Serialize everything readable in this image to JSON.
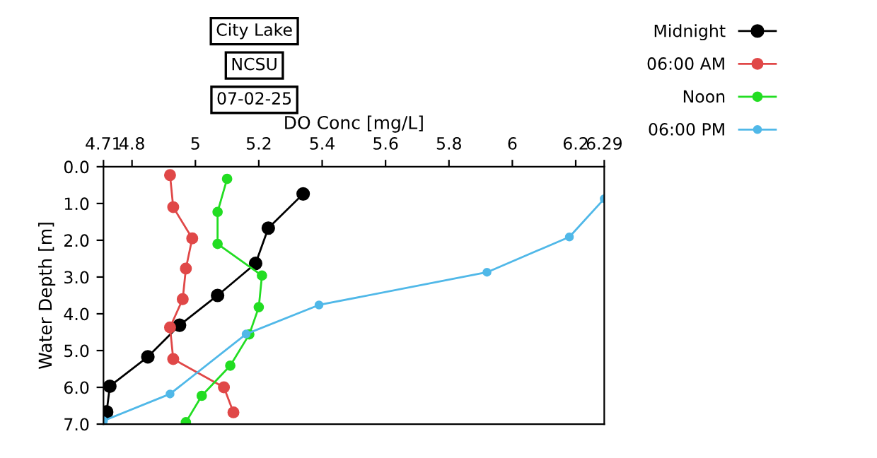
{
  "chart_data": {
    "type": "line",
    "title": "City Lake",
    "subtitle": "NCSU",
    "annotations": [
      "07-02-25"
    ],
    "xlabel": "DO Conc [mg/L]",
    "ylabel": "Water Depth [m]",
    "xlim": [
      4.71,
      6.29
    ],
    "xticks": [
      4.71,
      4.8,
      5,
      5.2,
      5.4,
      5.6,
      5.8,
      6,
      6.2,
      6.29
    ],
    "ylim": [
      7.0,
      0.0
    ],
    "yticks": [
      {
        "value": 0,
        "label": "0.0"
      },
      {
        "value": 1,
        "label": "1.0"
      },
      {
        "value": 2,
        "label": "2.0"
      },
      {
        "value": 3,
        "label": "3.0"
      },
      {
        "value": 4,
        "label": "4.0"
      },
      {
        "value": 5,
        "label": "5.0"
      },
      {
        "value": 6,
        "label": "6.0"
      },
      {
        "value": 7,
        "label": "7.0"
      }
    ],
    "marker": "circle",
    "line_style": "solid",
    "grid": false,
    "legend": "top right",
    "series": [
      {
        "name": "Midnight",
        "color": "#000000",
        "x": [
          5.34,
          5.23,
          5.19,
          5.07,
          4.95,
          4.85,
          4.73,
          4.72
        ],
        "values": [
          0.74,
          1.67,
          2.63,
          3.5,
          4.31,
          5.17,
          5.97,
          6.67
        ]
      },
      {
        "name": "06:00 AM",
        "color": "#e04848",
        "x": [
          4.92,
          4.93,
          4.99,
          4.97,
          4.96,
          4.92,
          4.93,
          5.09,
          5.12
        ],
        "values": [
          0.23,
          1.1,
          1.95,
          2.77,
          3.6,
          4.37,
          5.23,
          6.0,
          6.68
        ]
      },
      {
        "name": "Noon",
        "color": "#22dd22",
        "x": [
          5.1,
          5.07,
          5.07,
          5.21,
          5.2,
          5.17,
          5.11,
          5.02,
          4.97
        ],
        "values": [
          0.33,
          1.23,
          2.1,
          2.96,
          3.82,
          4.56,
          5.41,
          6.23,
          6.95
        ]
      },
      {
        "name": "06:00 PM",
        "color": "#50b8e8",
        "x": [
          6.29,
          6.18,
          5.92,
          5.39,
          5.16,
          4.92,
          4.71
        ],
        "values": [
          0.87,
          1.91,
          2.87,
          3.76,
          4.55,
          6.18,
          6.91
        ]
      }
    ]
  }
}
